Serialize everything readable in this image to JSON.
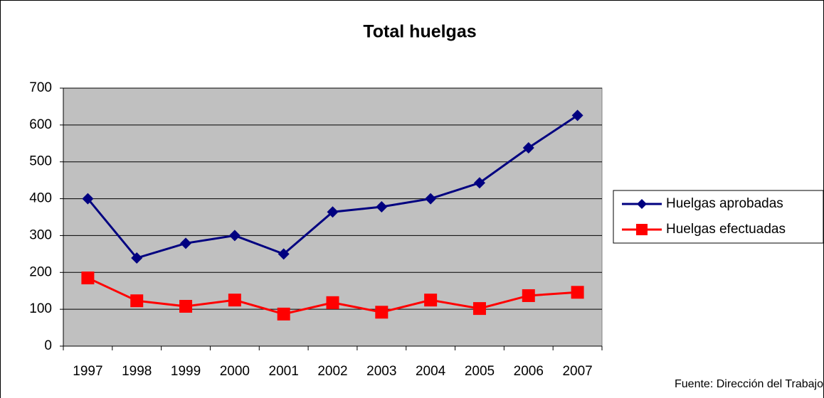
{
  "chart_data": {
    "type": "line",
    "title": "Total huelgas",
    "categories": [
      "1997",
      "1998",
      "1999",
      "2000",
      "2001",
      "2002",
      "2003",
      "2004",
      "2005",
      "2006",
      "2007"
    ],
    "series": [
      {
        "name": "Huelgas aprobadas",
        "color": "#000080",
        "marker": "diamond",
        "values": [
          400,
          239,
          279,
          300,
          250,
          364,
          378,
          400,
          443,
          538,
          626
        ]
      },
      {
        "name": "Huelgas efectuadas",
        "color": "#ff0000",
        "marker": "square",
        "values": [
          185,
          123,
          108,
          125,
          87,
          118,
          92,
          125,
          102,
          137,
          146
        ]
      }
    ],
    "ylim": [
      0,
      700
    ],
    "yticks": [
      0,
      100,
      200,
      300,
      400,
      500,
      600,
      700
    ],
    "grid": true,
    "legend": "right",
    "source": "Fuente: Dirección del Trabajo"
  }
}
